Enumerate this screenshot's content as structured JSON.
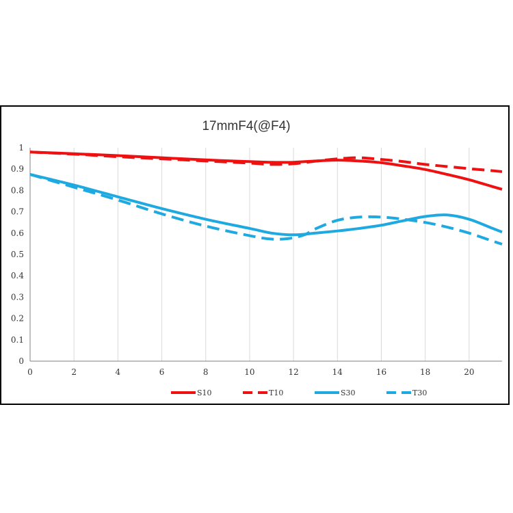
{
  "chart_data": {
    "type": "line",
    "title": "17mmF4(@F4)",
    "xlabel": "",
    "ylabel": "",
    "xlim": [
      0,
      21.5
    ],
    "ylim": [
      0,
      1
    ],
    "xticks": [
      "0",
      "2",
      "4",
      "6",
      "8",
      "10",
      "12",
      "14",
      "16",
      "18",
      "20"
    ],
    "yticks": [
      "0",
      "0.1",
      "0.2",
      "0.3",
      "0.4",
      "0.5",
      "0.6",
      "0.7",
      "0.8",
      "0.9",
      "1"
    ],
    "grid": "vertical",
    "legend_position": "bottom",
    "series": [
      {
        "name": "S10",
        "color": "#ee1111",
        "dash": "solid",
        "x": [
          0,
          2,
          4,
          6,
          8,
          10,
          11,
          12,
          13,
          14,
          15,
          16,
          17,
          18,
          19,
          20,
          21,
          21.5
        ],
        "y": [
          0.98,
          0.972,
          0.963,
          0.953,
          0.943,
          0.935,
          0.932,
          0.932,
          0.938,
          0.942,
          0.938,
          0.93,
          0.915,
          0.898,
          0.875,
          0.85,
          0.82,
          0.805
        ]
      },
      {
        "name": "T10",
        "color": "#ee1111",
        "dash": "dashed",
        "x": [
          0,
          2,
          4,
          6,
          8,
          10,
          11,
          12,
          13,
          14,
          15,
          16,
          17,
          18,
          19,
          20,
          21,
          21.5
        ],
        "y": [
          0.98,
          0.97,
          0.958,
          0.948,
          0.938,
          0.928,
          0.922,
          0.925,
          0.937,
          0.948,
          0.953,
          0.945,
          0.935,
          0.922,
          0.912,
          0.902,
          0.893,
          0.888
        ]
      },
      {
        "name": "S30",
        "color": "#1fa9e1",
        "dash": "solid",
        "x": [
          0,
          2,
          4,
          6,
          8,
          10,
          11,
          12,
          13,
          14,
          15,
          16,
          17,
          18,
          19,
          20,
          21,
          21.5
        ],
        "y": [
          0.875,
          0.825,
          0.77,
          0.715,
          0.665,
          0.622,
          0.6,
          0.592,
          0.6,
          0.61,
          0.622,
          0.637,
          0.658,
          0.678,
          0.685,
          0.665,
          0.625,
          0.605
        ]
      },
      {
        "name": "T30",
        "color": "#1fa9e1",
        "dash": "dashed",
        "x": [
          0,
          2,
          4,
          6,
          8,
          10,
          11,
          11.8,
          12.5,
          13,
          14,
          15,
          16,
          17,
          18,
          19,
          20,
          21,
          21.5
        ],
        "y": [
          0.875,
          0.815,
          0.755,
          0.69,
          0.633,
          0.588,
          0.572,
          0.575,
          0.592,
          0.62,
          0.66,
          0.675,
          0.675,
          0.665,
          0.65,
          0.628,
          0.6,
          0.565,
          0.548
        ]
      }
    ]
  }
}
